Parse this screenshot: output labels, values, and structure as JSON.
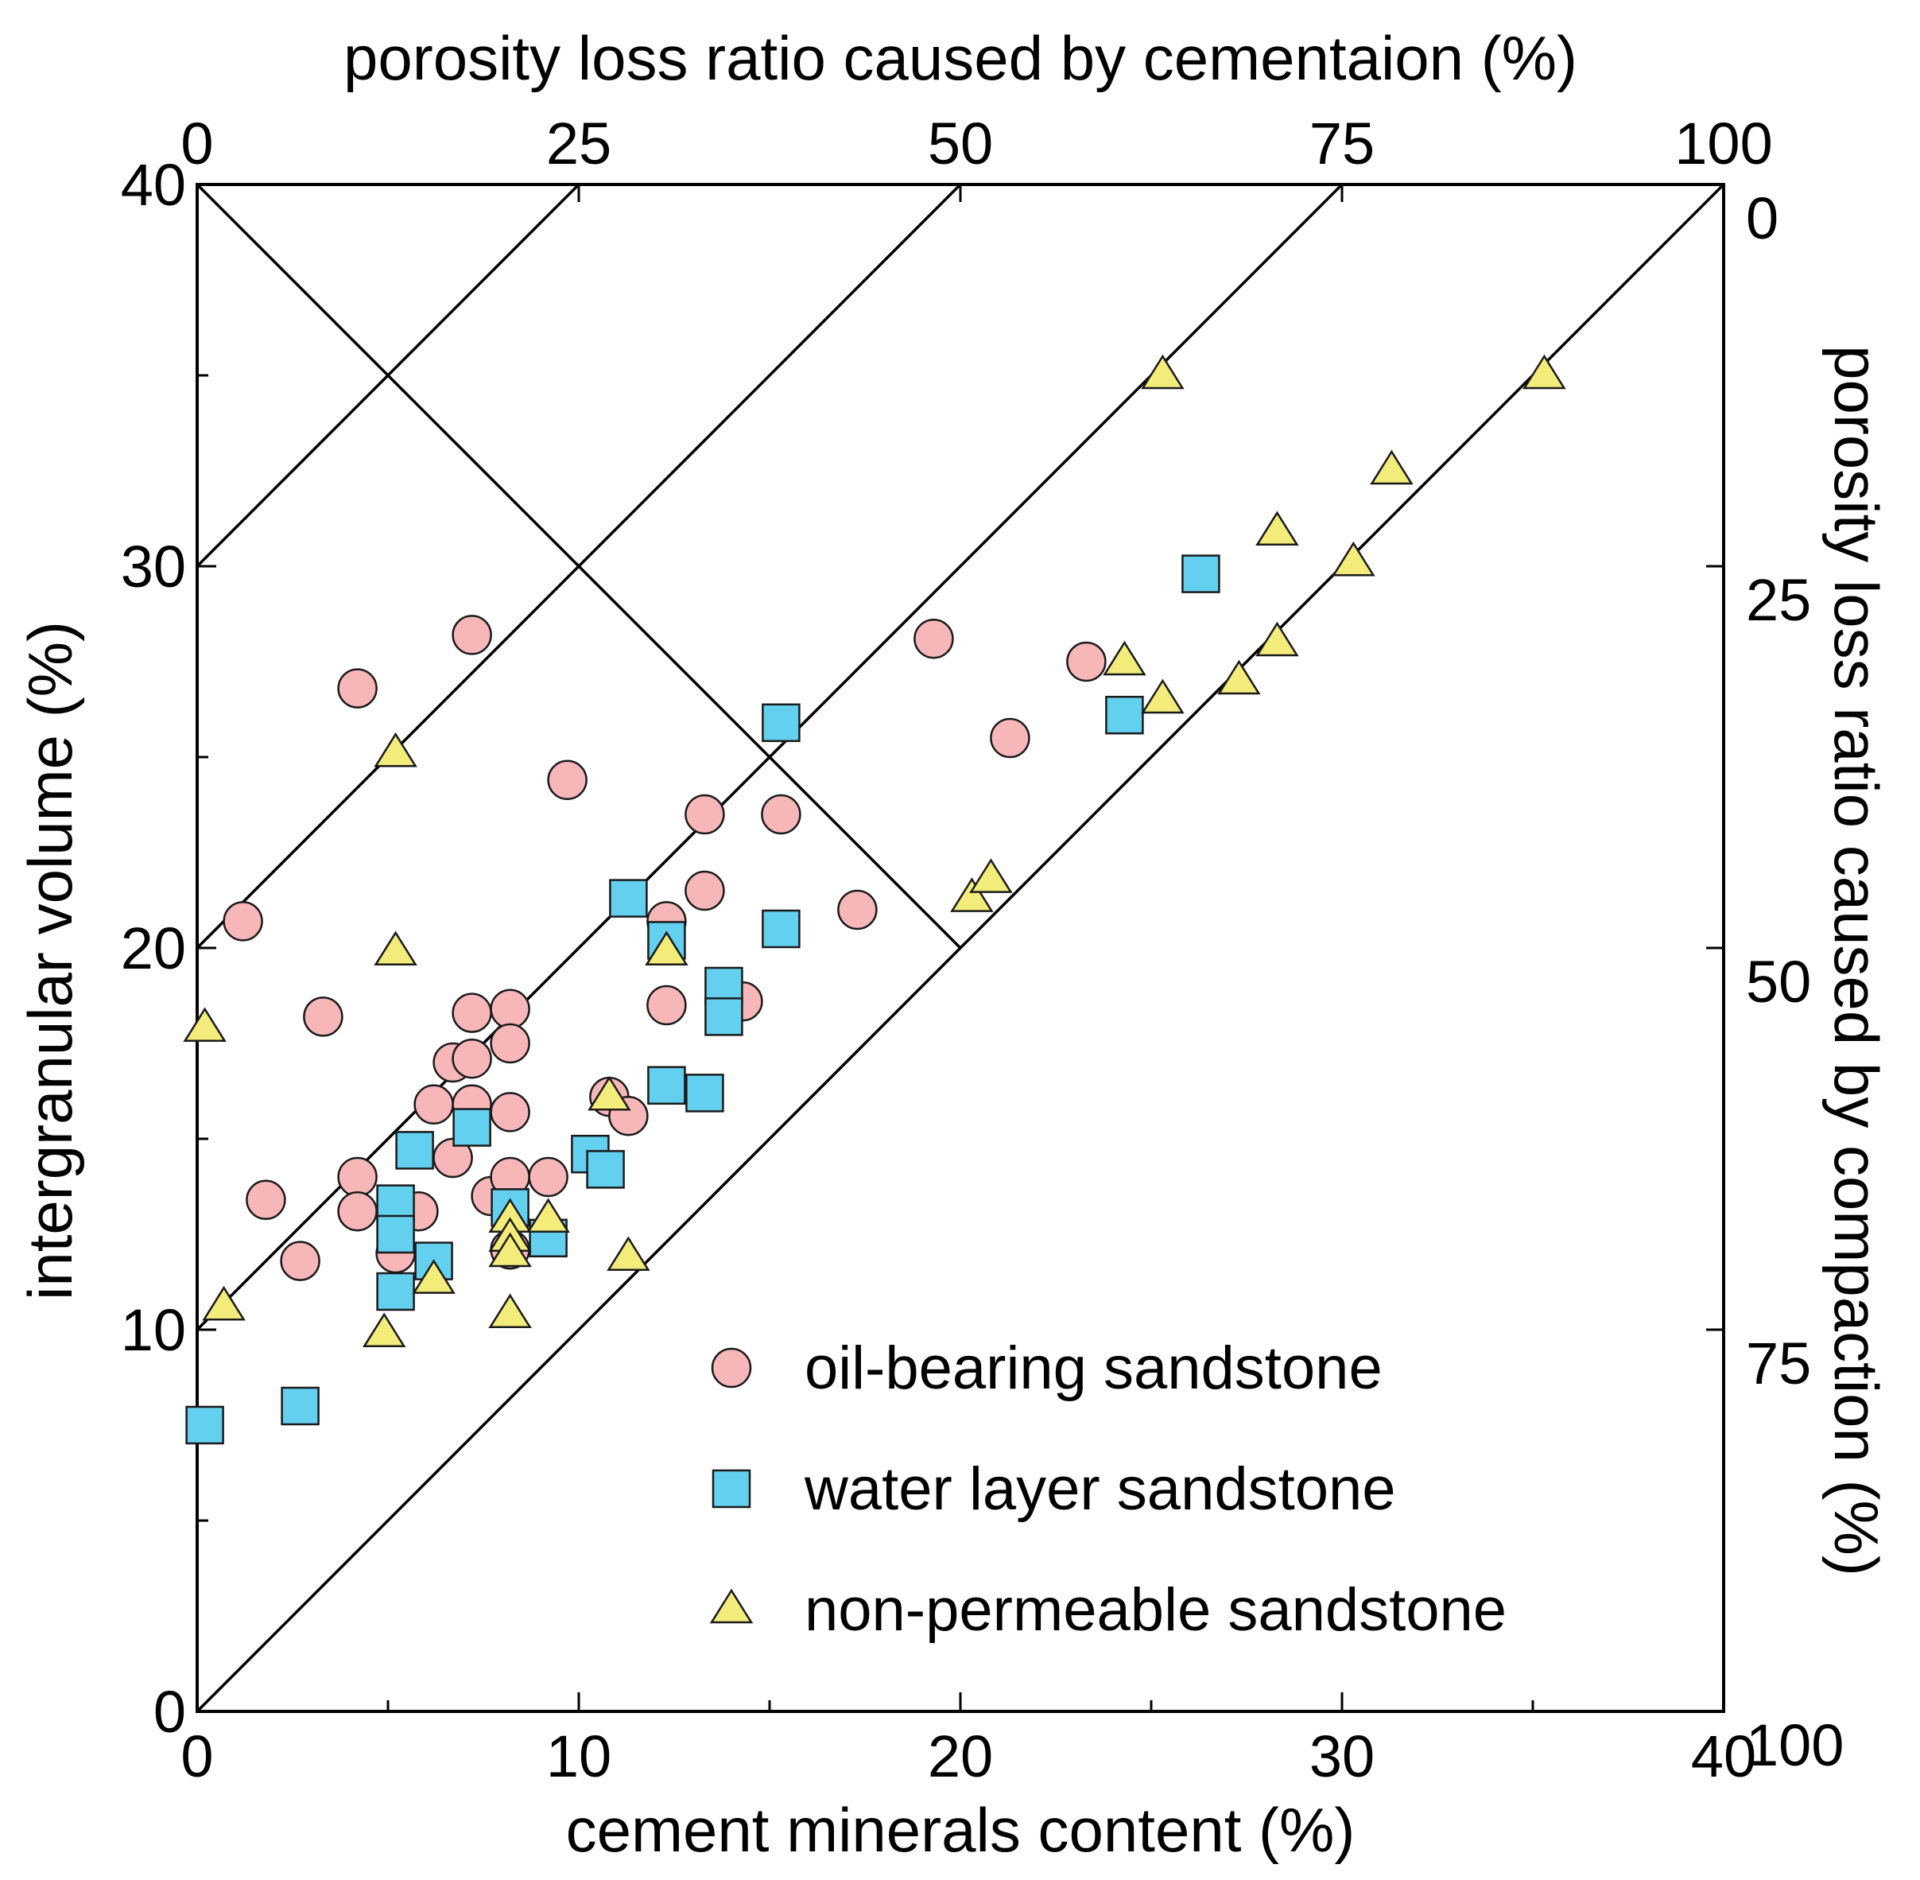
{
  "chart_data": {
    "type": "scatter",
    "xlabel": "cement minerals content (%)",
    "ylabel": "intergranular volume (%)",
    "top_label": "porosity loss ratio caused by cementaion (%)",
    "right_label": "porosity loss ratio caused by compaction (%)",
    "xlim": [
      0,
      40
    ],
    "ylim": [
      0,
      40
    ],
    "x_ticks": [
      0,
      10,
      20,
      30,
      40
    ],
    "y_ticks": [
      0,
      10,
      20,
      30,
      40
    ],
    "top_ticks": [
      {
        "label": "0",
        "x": 0
      },
      {
        "label": "25",
        "x": 10
      },
      {
        "label": "50",
        "x": 20
      },
      {
        "label": "75",
        "x": 30
      },
      {
        "label": "100",
        "x": 40
      }
    ],
    "right_ticks": [
      {
        "label": "0",
        "y": 40
      },
      {
        "label": "25",
        "y": 30
      },
      {
        "label": "50",
        "y": 20
      },
      {
        "label": "75",
        "y": 10
      },
      {
        "label": "100",
        "y": 0
      }
    ],
    "reference_lines": [
      [
        [
          0,
          30
        ],
        [
          10,
          40
        ]
      ],
      [
        [
          0,
          20
        ],
        [
          20,
          40
        ]
      ],
      [
        [
          0,
          10
        ],
        [
          30,
          40
        ]
      ],
      [
        [
          0,
          0
        ],
        [
          40,
          40
        ]
      ],
      [
        [
          0,
          40
        ],
        [
          20,
          20
        ]
      ]
    ],
    "legend_position": "lower-right",
    "series": [
      {
        "name": "oil-bearing sandstone",
        "marker": "circle",
        "color": "#f7b6b8",
        "points": [
          [
            1.2,
            20.7
          ],
          [
            1.8,
            13.4
          ],
          [
            2.7,
            11.8
          ],
          [
            3.3,
            18.2
          ],
          [
            4.2,
            26.8
          ],
          [
            4.2,
            14.0
          ],
          [
            4.2,
            13.1
          ],
          [
            5.2,
            12.0
          ],
          [
            5.8,
            13.1
          ],
          [
            6.2,
            15.9
          ],
          [
            6.7,
            17.0
          ],
          [
            6.7,
            14.5
          ],
          [
            7.2,
            28.2
          ],
          [
            7.2,
            18.3
          ],
          [
            7.2,
            17.1
          ],
          [
            7.2,
            15.9
          ],
          [
            7.7,
            13.5
          ],
          [
            8.2,
            18.4
          ],
          [
            8.2,
            17.5
          ],
          [
            8.2,
            15.7
          ],
          [
            8.2,
            14.0
          ],
          [
            8.2,
            12.1
          ],
          [
            9.2,
            14.0
          ],
          [
            9.7,
            24.4
          ],
          [
            10.8,
            16.1
          ],
          [
            11.3,
            15.6
          ],
          [
            12.3,
            20.7
          ],
          [
            12.3,
            18.5
          ],
          [
            13.3,
            23.5
          ],
          [
            13.3,
            21.5
          ],
          [
            14.3,
            18.6
          ],
          [
            15.3,
            23.5
          ],
          [
            17.3,
            21.0
          ],
          [
            19.3,
            28.1
          ],
          [
            21.3,
            25.5
          ],
          [
            23.3,
            27.5
          ]
        ]
      },
      {
        "name": "water layer sandstone",
        "marker": "square",
        "color": "#63d0ef",
        "points": [
          [
            0.2,
            7.5
          ],
          [
            2.7,
            8.0
          ],
          [
            5.2,
            13.3
          ],
          [
            5.2,
            12.5
          ],
          [
            5.2,
            11.0
          ],
          [
            5.7,
            14.7
          ],
          [
            6.2,
            11.8
          ],
          [
            7.2,
            15.3
          ],
          [
            8.2,
            13.2
          ],
          [
            9.2,
            12.4
          ],
          [
            10.3,
            14.6
          ],
          [
            10.7,
            14.2
          ],
          [
            11.3,
            21.3
          ],
          [
            12.3,
            20.2
          ],
          [
            12.3,
            16.4
          ],
          [
            13.3,
            16.2
          ],
          [
            13.8,
            19.0
          ],
          [
            13.8,
            18.2
          ],
          [
            15.3,
            25.9
          ],
          [
            15.3,
            20.5
          ],
          [
            24.3,
            26.1
          ],
          [
            26.3,
            29.8
          ]
        ]
      },
      {
        "name": "non-permeable sandstone",
        "marker": "triangle",
        "color": "#f4ec7a",
        "points": [
          [
            0.2,
            17.9
          ],
          [
            0.7,
            10.6
          ],
          [
            4.9,
            9.9
          ],
          [
            5.2,
            25.1
          ],
          [
            5.2,
            19.9
          ],
          [
            6.2,
            11.3
          ],
          [
            8.2,
            12.9
          ],
          [
            8.2,
            12.4
          ],
          [
            8.2,
            12.0
          ],
          [
            8.2,
            10.4
          ],
          [
            9.2,
            12.9
          ],
          [
            10.8,
            16.1
          ],
          [
            11.3,
            11.9
          ],
          [
            12.3,
            19.9
          ],
          [
            20.3,
            21.3
          ],
          [
            20.8,
            21.8
          ],
          [
            24.3,
            27.5
          ],
          [
            25.3,
            35.0
          ],
          [
            25.3,
            26.5
          ],
          [
            27.3,
            27.0
          ],
          [
            28.3,
            30.9
          ],
          [
            28.3,
            28.0
          ],
          [
            30.3,
            30.1
          ],
          [
            31.3,
            32.5
          ],
          [
            35.3,
            35.0
          ]
        ]
      }
    ]
  }
}
